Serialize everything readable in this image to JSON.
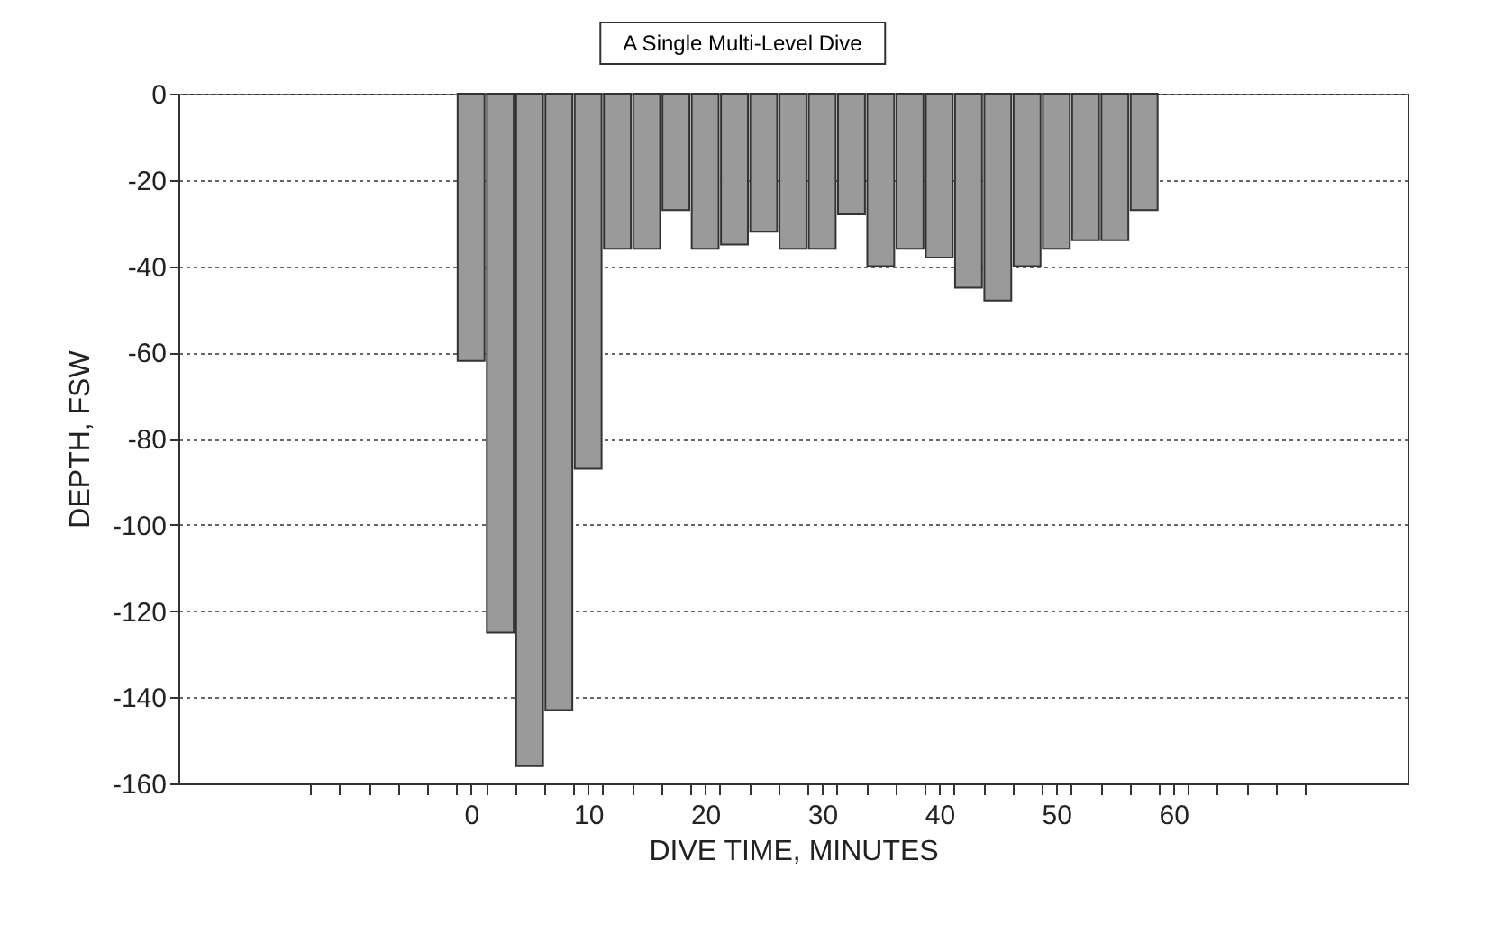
{
  "chart_data": {
    "type": "bar",
    "title": "A Single Multi-Level Dive",
    "xlabel": "DIVE TIME, MINUTES",
    "ylabel": "DEPTH, FSW",
    "x": [
      0,
      2.5,
      5,
      7.5,
      10,
      12.5,
      15,
      17.5,
      20,
      22.5,
      25,
      27.5,
      30,
      32.5,
      35,
      37.5,
      40,
      42.5,
      45,
      47.5,
      50,
      52.5,
      55,
      57.5
    ],
    "values": [
      -62,
      -125,
      -156,
      -143,
      -87,
      -36,
      -36,
      -27,
      -36,
      -35,
      -32,
      -36,
      -36,
      -28,
      -40,
      -36,
      -38,
      -45,
      -48,
      -40,
      -36,
      -34,
      -34,
      -27
    ],
    "color": "#9a9a9a",
    "xlim": [
      -25,
      80
    ],
    "xticks": [
      {
        "value": -13.75,
        "label": null
      },
      {
        "value": -11.25,
        "label": null
      },
      {
        "value": -8.75,
        "label": null
      },
      {
        "value": -6.25,
        "label": null
      },
      {
        "value": -3.75,
        "label": null
      },
      {
        "value": -1.25,
        "label": null
      },
      0,
      {
        "value": 1.25,
        "label": null
      },
      {
        "value": 3.75,
        "label": null
      },
      {
        "value": 6.25,
        "label": null
      },
      {
        "value": 8.75,
        "label": null
      },
      10,
      {
        "value": 11.25,
        "label": null
      },
      {
        "value": 13.75,
        "label": null
      },
      {
        "value": 16.25,
        "label": null
      },
      {
        "value": 18.75,
        "label": null
      },
      20,
      {
        "value": 21.25,
        "label": null
      },
      {
        "value": 23.75,
        "label": null
      },
      {
        "value": 26.25,
        "label": null
      },
      {
        "value": 28.75,
        "label": null
      },
      30,
      {
        "value": 31.25,
        "label": null
      },
      {
        "value": 33.75,
        "label": null
      },
      {
        "value": 36.25,
        "label": null
      },
      {
        "value": 38.75,
        "label": null
      },
      40,
      {
        "value": 41.25,
        "label": null
      },
      {
        "value": 43.75,
        "label": null
      },
      {
        "value": 46.25,
        "label": null
      },
      {
        "value": 48.75,
        "label": null
      },
      50,
      {
        "value": 51.25,
        "label": null
      },
      {
        "value": 53.75,
        "label": null
      },
      {
        "value": 56.25,
        "label": null
      },
      {
        "value": 58.75,
        "label": null
      },
      60,
      {
        "value": 61.25,
        "label": null
      },
      {
        "value": 63.75,
        "label": null
      },
      {
        "value": 66.25,
        "label": null
      },
      {
        "value": 68.75,
        "label": null
      },
      {
        "value": 71.25,
        "label": null
      }
    ],
    "ylim": [
      -160,
      0
    ],
    "yticks": [
      -160,
      -140,
      -120,
      -100,
      -80,
      -60,
      -40,
      -20,
      0
    ],
    "grid": "y"
  }
}
